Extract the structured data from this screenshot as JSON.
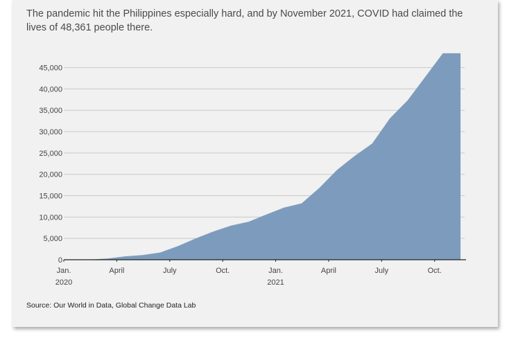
{
  "title": "The pandemic hit the Philippines especially hard, and by November 2021, COVID had claimed the lives of 48,361 people there.",
  "source": "Source: Our World in Data, Global Change Data Lab",
  "colors": {
    "area": "#7d9cbd",
    "grid": "#c9c9c9",
    "axis": "#222222",
    "background": "#f1f1f1"
  },
  "chart_data": {
    "type": "area",
    "title": "",
    "xlabel": "",
    "ylabel": "",
    "ylim": [
      0,
      48500
    ],
    "yticks": [
      0,
      5000,
      10000,
      15000,
      20000,
      25000,
      30000,
      35000,
      40000,
      45000
    ],
    "ytick_labels": [
      "0",
      "5,000",
      "10,000",
      "15,000",
      "20,000",
      "25,000",
      "30,000",
      "35,000",
      "40,000",
      "45,000"
    ],
    "xticks": [
      {
        "month": 0,
        "line1": "Jan.",
        "line2": "2020"
      },
      {
        "month": 3,
        "line1": "April",
        "line2": ""
      },
      {
        "month": 6,
        "line1": "July",
        "line2": ""
      },
      {
        "month": 9,
        "line1": "Oct.",
        "line2": ""
      },
      {
        "month": 12,
        "line1": "Jan.",
        "line2": "2021"
      },
      {
        "month": 15,
        "line1": "April",
        "line2": ""
      },
      {
        "month": 18,
        "line1": "July",
        "line2": ""
      },
      {
        "month": 21,
        "line1": "Oct.",
        "line2": ""
      }
    ],
    "x": [
      "2020-01-01",
      "2020-02-15",
      "2020-03-15",
      "2020-04-15",
      "2020-05-15",
      "2020-06-15",
      "2020-07-15",
      "2020-08-15",
      "2020-09-15",
      "2020-10-15",
      "2020-11-15",
      "2020-12-15",
      "2021-01-15",
      "2021-02-15",
      "2021-03-15",
      "2021-04-15",
      "2021-05-15",
      "2021-06-15",
      "2021-07-15",
      "2021-08-15",
      "2021-09-15",
      "2021-10-15",
      "2021-11-15"
    ],
    "y": [
      0,
      50,
      300,
      800,
      1100,
      1700,
      3200,
      5000,
      6600,
      8000,
      8900,
      10600,
      12200,
      13200,
      16800,
      21000,
      24300,
      27200,
      33100,
      37300,
      42800,
      48361,
      48361
    ],
    "grid": true,
    "legend": "none"
  }
}
